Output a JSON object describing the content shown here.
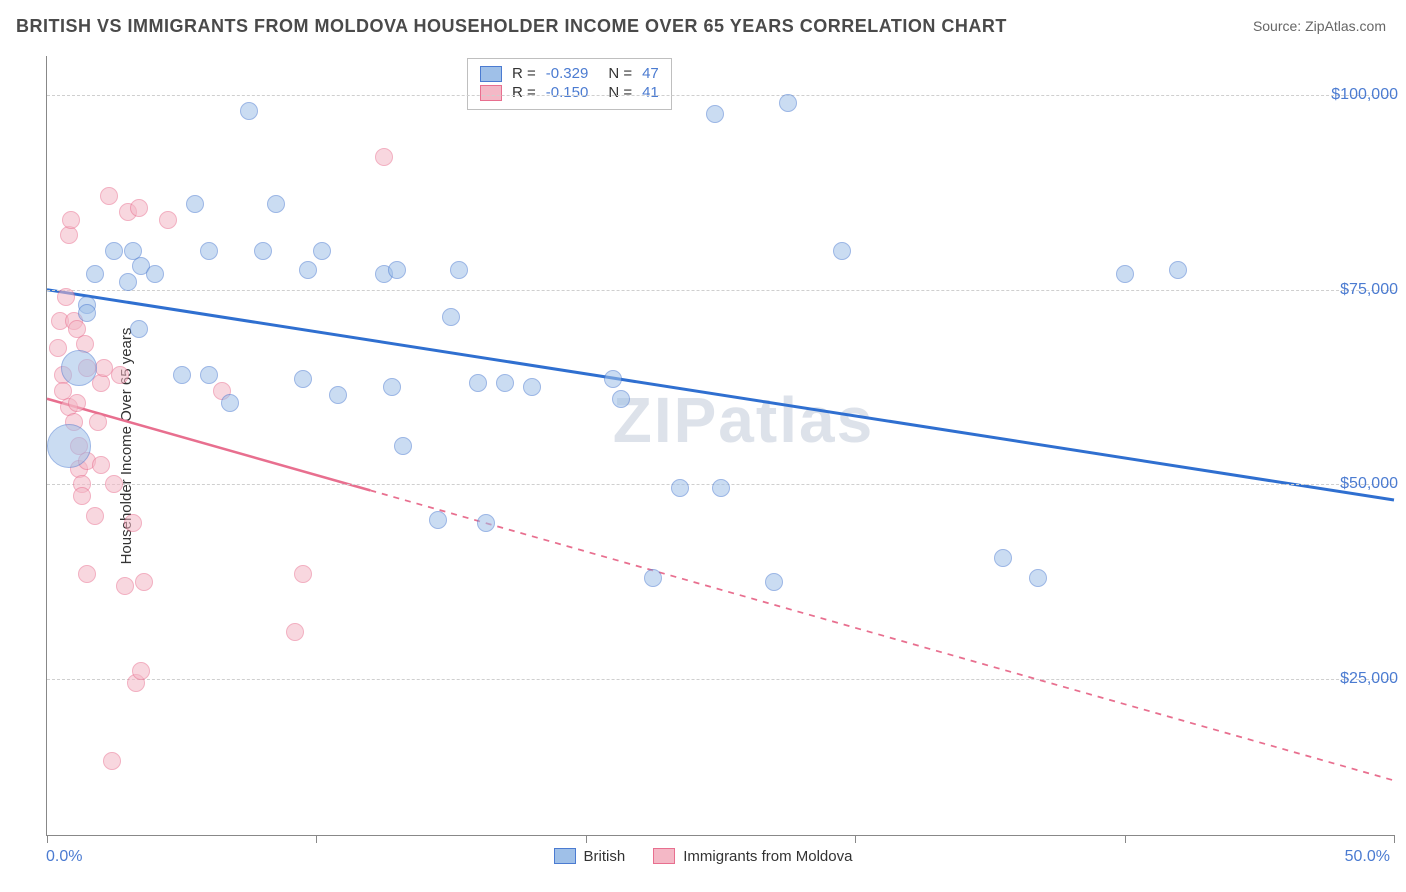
{
  "title": "BRITISH VS IMMIGRANTS FROM MOLDOVA HOUSEHOLDER INCOME OVER 65 YEARS CORRELATION CHART",
  "source_prefix": "Source: ",
  "source_name": "ZipAtlas.com",
  "watermark": "ZIPatlas",
  "chart": {
    "type": "scatter",
    "ylabel": "Householder Income Over 65 years",
    "xlim": [
      0,
      50
    ],
    "ylim": [
      5000,
      105000
    ],
    "x_ticks_pct": [
      0,
      10,
      20,
      30,
      40,
      50
    ],
    "x_tick_labels": {
      "left": "0.0%",
      "right": "50.0%"
    },
    "y_grid": [
      25000,
      50000,
      75000,
      100000
    ],
    "y_tick_labels": [
      "$25,000",
      "$50,000",
      "$75,000",
      "$100,000"
    ],
    "background_color": "#ffffff",
    "grid_color": "#cfcfcf",
    "axis_color": "#888888",
    "tick_label_color": "#4b7bd1",
    "marker_radius": 9,
    "marker_opacity": 0.55,
    "series": [
      {
        "name": "British",
        "color_fill": "#9fc0e8",
        "color_stroke": "#4b7bd1",
        "R": "-0.329",
        "N": "47",
        "trend": {
          "x1": 0,
          "y1": 75000,
          "x2": 50,
          "y2": 48000,
          "color": "#2f6fd0",
          "width": 3,
          "solid_until_x": 50
        },
        "points": [
          {
            "x": 0.8,
            "y": 55000,
            "r": 22
          },
          {
            "x": 1.2,
            "y": 65000,
            "r": 18
          },
          {
            "x": 1.5,
            "y": 73000
          },
          {
            "x": 1.5,
            "y": 72000
          },
          {
            "x": 1.8,
            "y": 77000
          },
          {
            "x": 2.5,
            "y": 80000
          },
          {
            "x": 3.0,
            "y": 76000
          },
          {
            "x": 3.2,
            "y": 80000
          },
          {
            "x": 3.4,
            "y": 70000
          },
          {
            "x": 3.5,
            "y": 78000
          },
          {
            "x": 4.0,
            "y": 77000
          },
          {
            "x": 5.0,
            "y": 64000
          },
          {
            "x": 5.5,
            "y": 86000
          },
          {
            "x": 6.0,
            "y": 80000
          },
          {
            "x": 6.0,
            "y": 64000
          },
          {
            "x": 6.8,
            "y": 60500
          },
          {
            "x": 7.5,
            "y": 98000
          },
          {
            "x": 8.0,
            "y": 80000
          },
          {
            "x": 8.5,
            "y": 86000
          },
          {
            "x": 9.5,
            "y": 63500
          },
          {
            "x": 9.7,
            "y": 77500
          },
          {
            "x": 10.2,
            "y": 80000
          },
          {
            "x": 10.8,
            "y": 61500
          },
          {
            "x": 12.5,
            "y": 77000
          },
          {
            "x": 12.8,
            "y": 62500
          },
          {
            "x": 13.0,
            "y": 77500
          },
          {
            "x": 13.2,
            "y": 55000
          },
          {
            "x": 14.5,
            "y": 45500
          },
          {
            "x": 15.0,
            "y": 71500
          },
          {
            "x": 15.3,
            "y": 77500
          },
          {
            "x": 16.0,
            "y": 63000
          },
          {
            "x": 16.3,
            "y": 45000
          },
          {
            "x": 17.0,
            "y": 63000
          },
          {
            "x": 18.0,
            "y": 62500
          },
          {
            "x": 21.0,
            "y": 63500
          },
          {
            "x": 21.3,
            "y": 61000
          },
          {
            "x": 22.5,
            "y": 38000
          },
          {
            "x": 23.5,
            "y": 49500
          },
          {
            "x": 24.8,
            "y": 97500
          },
          {
            "x": 25.0,
            "y": 49500
          },
          {
            "x": 27.0,
            "y": 37500
          },
          {
            "x": 27.5,
            "y": 99000
          },
          {
            "x": 29.5,
            "y": 80000
          },
          {
            "x": 35.5,
            "y": 40500
          },
          {
            "x": 36.8,
            "y": 38000
          },
          {
            "x": 40.0,
            "y": 77000
          },
          {
            "x": 42.0,
            "y": 77500
          }
        ]
      },
      {
        "name": "Immigrants from Moldova",
        "color_fill": "#f4b8c6",
        "color_stroke": "#e86f8f",
        "R": "-0.150",
        "N": "41",
        "trend": {
          "x1": 0,
          "y1": 61000,
          "x2": 50,
          "y2": 12000,
          "color": "#e86f8f",
          "width": 2.5,
          "solid_until_x": 12
        },
        "points": [
          {
            "x": 0.4,
            "y": 67500
          },
          {
            "x": 0.5,
            "y": 71000
          },
          {
            "x": 0.6,
            "y": 64000
          },
          {
            "x": 0.6,
            "y": 62000
          },
          {
            "x": 0.7,
            "y": 74000
          },
          {
            "x": 0.8,
            "y": 82000
          },
          {
            "x": 0.8,
            "y": 60000
          },
          {
            "x": 0.9,
            "y": 84000
          },
          {
            "x": 1.0,
            "y": 71000
          },
          {
            "x": 1.0,
            "y": 58000
          },
          {
            "x": 1.1,
            "y": 70000
          },
          {
            "x": 1.1,
            "y": 60500
          },
          {
            "x": 1.2,
            "y": 55000
          },
          {
            "x": 1.2,
            "y": 52000
          },
          {
            "x": 1.3,
            "y": 50000
          },
          {
            "x": 1.3,
            "y": 48500
          },
          {
            "x": 1.4,
            "y": 68000
          },
          {
            "x": 1.5,
            "y": 65000
          },
          {
            "x": 1.5,
            "y": 53000
          },
          {
            "x": 1.5,
            "y": 38500
          },
          {
            "x": 1.8,
            "y": 46000
          },
          {
            "x": 1.9,
            "y": 58000
          },
          {
            "x": 2.0,
            "y": 63000
          },
          {
            "x": 2.0,
            "y": 52500
          },
          {
            "x": 2.1,
            "y": 65000
          },
          {
            "x": 2.3,
            "y": 87000
          },
          {
            "x": 2.4,
            "y": 14500
          },
          {
            "x": 2.5,
            "y": 50000
          },
          {
            "x": 2.7,
            "y": 64000
          },
          {
            "x": 2.9,
            "y": 37000
          },
          {
            "x": 3.0,
            "y": 85000
          },
          {
            "x": 3.2,
            "y": 45000
          },
          {
            "x": 3.3,
            "y": 24500
          },
          {
            "x": 3.4,
            "y": 85500
          },
          {
            "x": 3.5,
            "y": 26000
          },
          {
            "x": 3.6,
            "y": 37500
          },
          {
            "x": 4.5,
            "y": 84000
          },
          {
            "x": 6.5,
            "y": 62000
          },
          {
            "x": 9.2,
            "y": 31000
          },
          {
            "x": 9.5,
            "y": 38500
          },
          {
            "x": 12.5,
            "y": 92000
          }
        ]
      }
    ],
    "legend_series": [
      {
        "label": "British",
        "fill": "#9fc0e8",
        "stroke": "#4b7bd1"
      },
      {
        "label": "Immigrants from Moldova",
        "fill": "#f4b8c6",
        "stroke": "#e86f8f"
      }
    ]
  }
}
